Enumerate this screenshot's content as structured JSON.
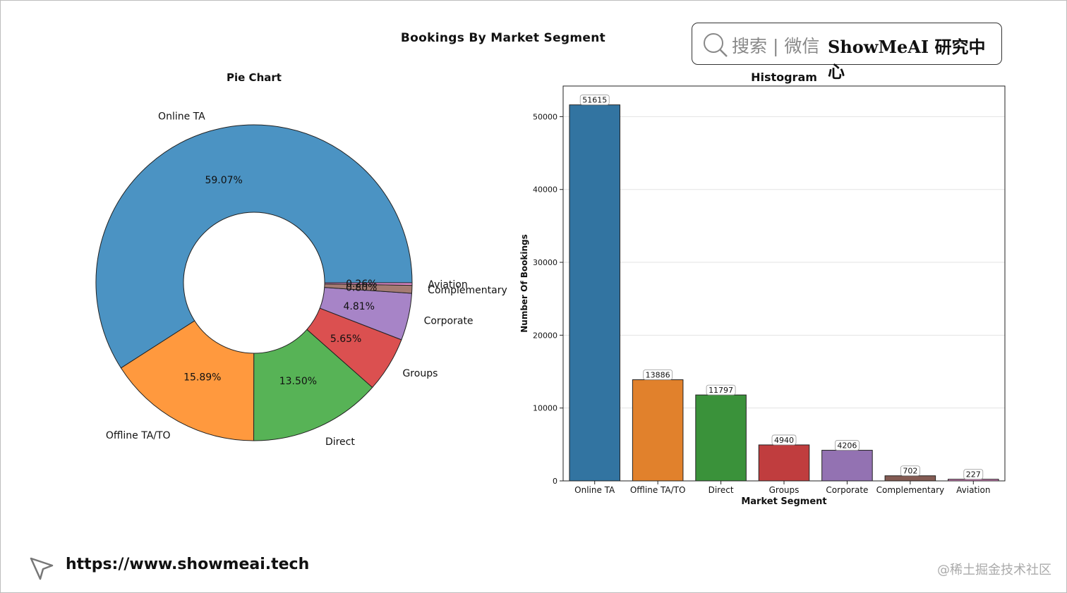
{
  "page": {
    "suptitle": "Bookings By Market Segment",
    "brand": {
      "search_text": "搜索 | 微信",
      "name": "ShowMeAI 研究中心"
    },
    "footer_link": "https://www.showmeai.tech",
    "watermark": "@稀土掘金技术社区"
  },
  "chart_data": [
    {
      "type": "pie",
      "title": "Pie Chart",
      "donut": true,
      "categories": [
        "Online TA",
        "Offline TA/TO",
        "Direct",
        "Groups",
        "Corporate",
        "Complementary",
        "Aviation"
      ],
      "values": [
        51615,
        13886,
        11797,
        4940,
        4206,
        702,
        227
      ],
      "percent_labels": [
        "59.07%",
        "15.89%",
        "13.50%",
        "5.65%",
        "4.81%",
        "0.80%",
        "0.26%"
      ],
      "colors": [
        "#4b93c3",
        "#ff993e",
        "#57b356",
        "#db5050",
        "#a784c7",
        "#a57b73",
        "#e089c8"
      ]
    },
    {
      "type": "bar",
      "title": "Histogram",
      "xlabel": "Market Segment",
      "ylabel": "Number Of Bookings",
      "categories": [
        "Online TA",
        "Offline TA/TO",
        "Direct",
        "Groups",
        "Corporate",
        "Complementary",
        "Aviation"
      ],
      "values": [
        51615,
        13886,
        11797,
        4940,
        4206,
        702,
        227
      ],
      "ylim": [
        0,
        54200
      ],
      "yticks": [
        0,
        10000,
        20000,
        30000,
        40000,
        50000
      ],
      "grid": true,
      "colors": [
        "#3274a1",
        "#e1812c",
        "#3a923a",
        "#c03d3e",
        "#9372b2",
        "#845b53",
        "#d684bd"
      ]
    }
  ]
}
